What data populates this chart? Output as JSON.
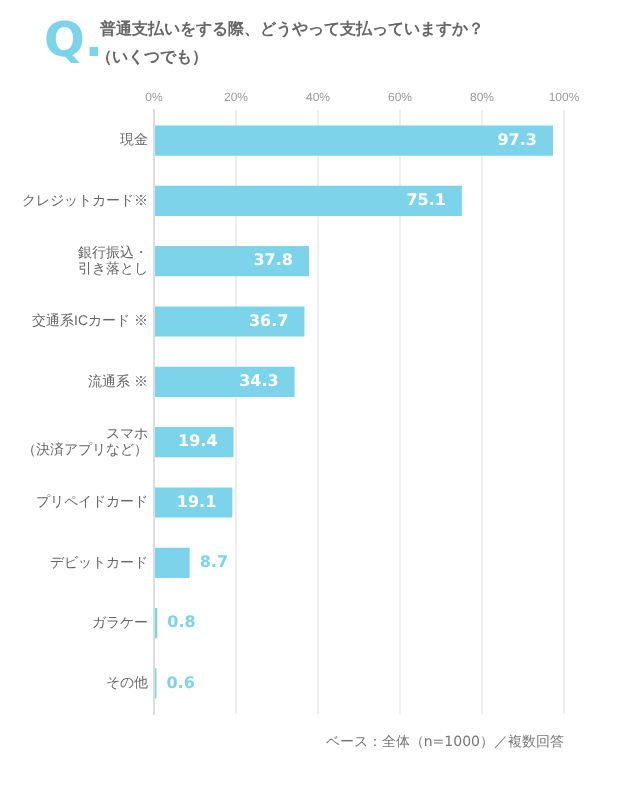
{
  "chart_data": {
    "type": "bar",
    "orientation": "horizontal",
    "title": "普通支払いをする際、どうやって支払っていますか？",
    "subtitle": "（いくつでも）",
    "categories": [
      "現金",
      "クレジットカード※",
      "銀行振込・引き落とし",
      "交通系ICカード ※",
      "流通系 ※",
      "スマホ（決済アプリなど）",
      "プリペイドカード",
      "デビットカード",
      "ガラケー",
      "その他"
    ],
    "values": [
      97.3,
      75.1,
      37.8,
      36.7,
      34.3,
      19.4,
      19.1,
      8.7,
      0.8,
      0.6
    ],
    "color": "#7dd3ea",
    "data_labels": true,
    "xlim": [
      0,
      100
    ],
    "xticks": [
      {
        "value": 0,
        "label": "0%"
      },
      {
        "value": 20,
        "label": "20%"
      },
      {
        "value": 40,
        "label": "40%"
      },
      {
        "value": 60,
        "label": "60%"
      },
      {
        "value": 80,
        "label": "80%"
      },
      {
        "value": 100,
        "label": "100%"
      }
    ],
    "grid": "x",
    "legend": false,
    "annotations": [
      "Q.",
      "ベース：全体（n=1000）／複数回答"
    ]
  }
}
